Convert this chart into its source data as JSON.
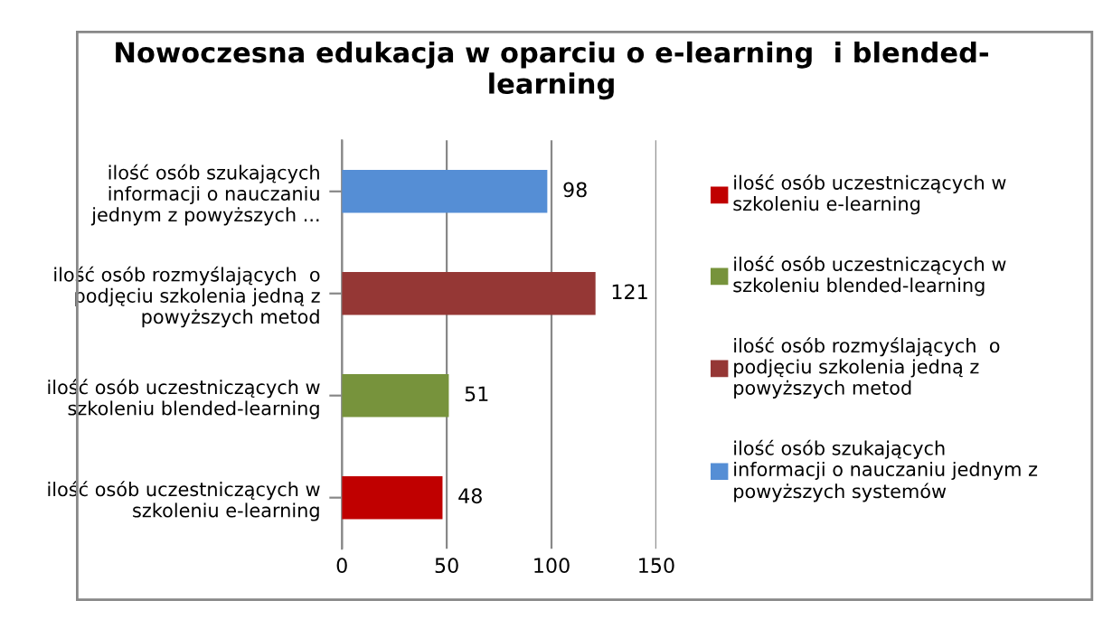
{
  "chart_data": {
    "type": "bar",
    "orientation": "horizontal",
    "title": "Nowoczesna edukacja w oparciu o e-learning  i blended-\nlearning",
    "categories": [
      "ilość osób szukających\ninformacji o nauczaniu\njednym z powyższych ...",
      "ilość osób rozmyślających  o\npodjęciu szkolenia jedną z\npowyższych metod",
      "ilość osób uczestniczących w\nszkoleniu blended-learning",
      "ilość osób uczestniczących w\nszkoleniu e-learning"
    ],
    "series": [
      {
        "name": "ilość osób uczestniczących w\nszkoleniu e-learning",
        "color": "#c00000",
        "values": [
          null,
          null,
          null,
          48
        ]
      },
      {
        "name": "ilość osób uczestniczących w\nszkoleniu blended-learning",
        "color": "#77933c",
        "values": [
          null,
          null,
          51,
          null
        ]
      },
      {
        "name": "ilość osób rozmyślających  o\npodjęciu szkolenia jedną z\npowyższych metod",
        "color": "#953735",
        "values": [
          null,
          121,
          null,
          null
        ]
      },
      {
        "name": "ilość osób szukających\ninformacji o nauczaniu jednym z\npowyższych systemów",
        "color": "#558ed5",
        "values": [
          98,
          null,
          null,
          null
        ]
      }
    ],
    "xlim": [
      0,
      150
    ],
    "xticks": [
      0,
      50,
      100,
      150
    ],
    "grid": "x",
    "legend": "right",
    "data_labels": true
  }
}
